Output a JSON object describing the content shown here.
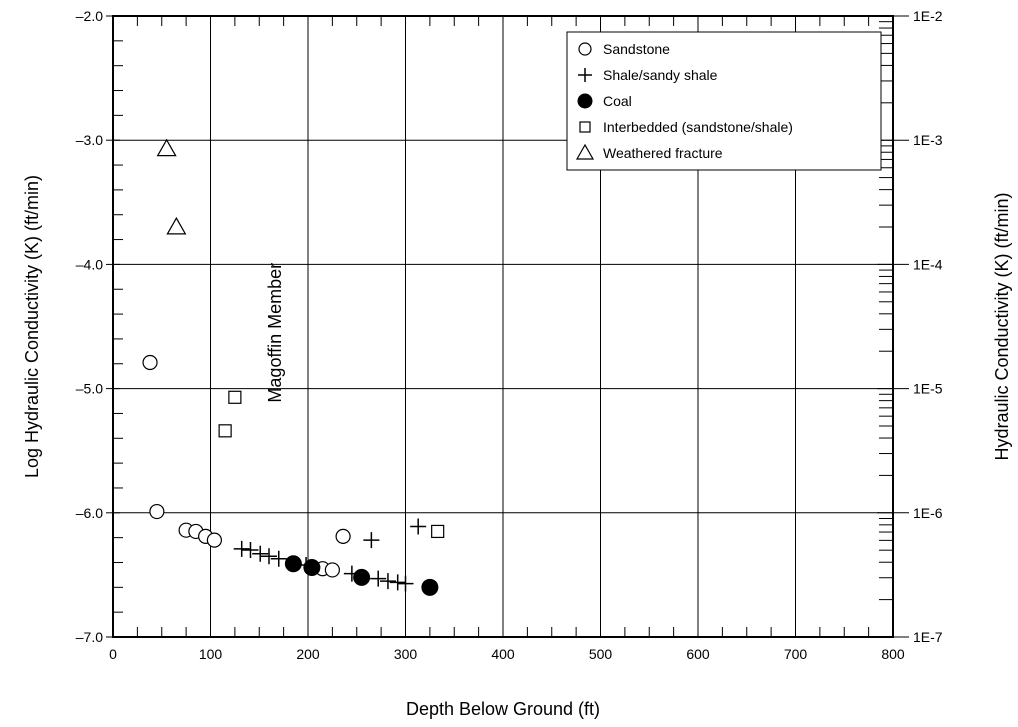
{
  "chart_data": {
    "type": "scatter",
    "xlabel": "Depth Below Ground (ft)",
    "ylabel": "Log Hydraulic Conductivity (K) (ft/min)",
    "ylabel_right": "Hydraulic Conductivity (K) (ft/min)",
    "xlim": [
      0,
      800
    ],
    "ylim": [
      -7.0,
      -2.0
    ],
    "x_ticks": [
      "0",
      "100",
      "200",
      "300",
      "400",
      "500",
      "600",
      "700",
      "800"
    ],
    "y_ticks": [
      "-7.0",
      "-6.0",
      "-5.0",
      "-4.0",
      "-3.0",
      "-2.0"
    ],
    "y_ticks_right": [
      "1E-7",
      "1E-6",
      "1E-5",
      "1E-4",
      "1E-3",
      "1E-2"
    ],
    "grid": true,
    "legend_position": "top-right",
    "annotation": "Magoffin Member",
    "series": [
      {
        "name": "Sandstone",
        "marker": "open-circle",
        "points": [
          {
            "x": 38,
            "y": -4.79
          },
          {
            "x": 45,
            "y": -5.99
          },
          {
            "x": 75,
            "y": -6.14
          },
          {
            "x": 85,
            "y": -6.15
          },
          {
            "x": 95,
            "y": -6.19
          },
          {
            "x": 104,
            "y": -6.22
          },
          {
            "x": 215,
            "y": -6.45
          },
          {
            "x": 225,
            "y": -6.46
          },
          {
            "x": 236,
            "y": -6.19
          }
        ]
      },
      {
        "name": "Shale/sandy shale",
        "marker": "plus",
        "points": [
          {
            "x": 132,
            "y": -6.29
          },
          {
            "x": 141,
            "y": -6.3
          },
          {
            "x": 151,
            "y": -6.33
          },
          {
            "x": 160,
            "y": -6.35
          },
          {
            "x": 170,
            "y": -6.37
          },
          {
            "x": 198,
            "y": -6.42
          },
          {
            "x": 245,
            "y": -6.49
          },
          {
            "x": 265,
            "y": -6.22
          },
          {
            "x": 272,
            "y": -6.53
          },
          {
            "x": 282,
            "y": -6.55
          },
          {
            "x": 292,
            "y": -6.56
          },
          {
            "x": 300,
            "y": -6.57
          },
          {
            "x": 313,
            "y": -6.11
          }
        ]
      },
      {
        "name": "Coal",
        "marker": "filled-circle",
        "points": [
          {
            "x": 185,
            "y": -6.41
          },
          {
            "x": 204,
            "y": -6.44
          },
          {
            "x": 255,
            "y": -6.52
          },
          {
            "x": 325,
            "y": -6.6
          }
        ]
      },
      {
        "name": "Interbedded (sandstone/shale)",
        "marker": "open-square",
        "points": [
          {
            "x": 115,
            "y": -5.34
          },
          {
            "x": 125,
            "y": -5.07
          },
          {
            "x": 333,
            "y": -6.15
          }
        ]
      },
      {
        "name": "Weathered fracture",
        "marker": "open-triangle",
        "points": [
          {
            "x": 55,
            "y": -3.07
          },
          {
            "x": 65,
            "y": -3.7
          }
        ]
      }
    ]
  }
}
